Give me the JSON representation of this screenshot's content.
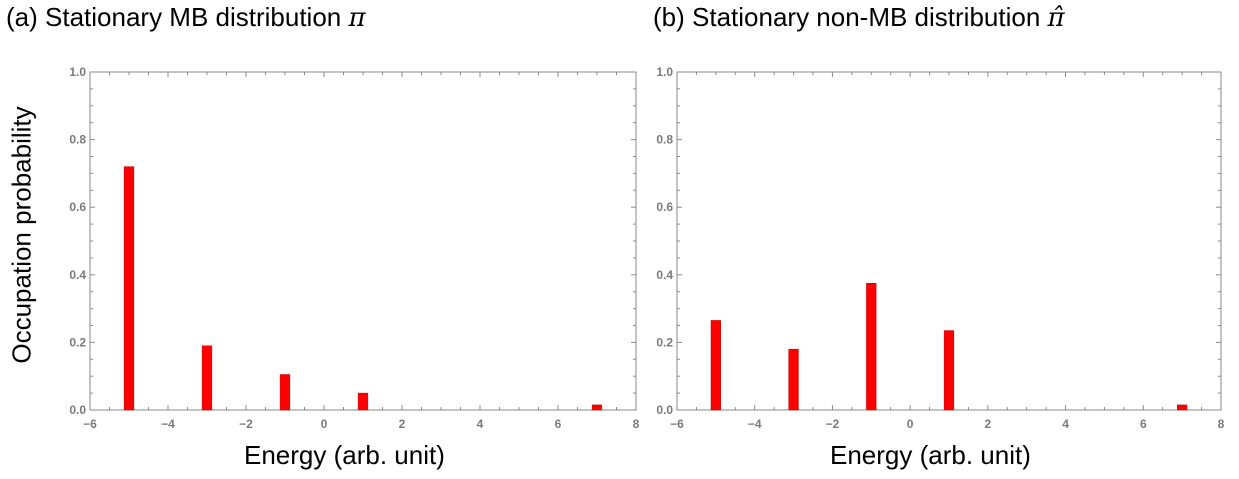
{
  "panels": [
    {
      "title_text": "(a) Stationary MB distribution ",
      "symbol": "π"
    },
    {
      "title_text": "(b) Stationary non-MB distribution ",
      "symbol": "π̂"
    }
  ],
  "ylabel": "Occupation probability",
  "xlabel": "Energy (arb. unit)",
  "chart_data": [
    {
      "type": "bar",
      "title": "(a) Stationary MB distribution π",
      "xlabel": "Energy (arb. unit)",
      "ylabel": "Occupation probability",
      "xlim": [
        -6,
        8
      ],
      "ylim": [
        0,
        1.0
      ],
      "x": [
        -5,
        -3,
        -1,
        1,
        7
      ],
      "values": [
        0.72,
        0.19,
        0.105,
        0.05,
        0.015
      ],
      "xticks": [
        -6,
        -4,
        -2,
        0,
        2,
        4,
        6,
        8
      ],
      "xtick_labels": [
        "−6",
        "−4",
        "−2",
        "0",
        "2",
        "4",
        "6",
        "8"
      ],
      "yticks": [
        0.0,
        0.2,
        0.4,
        0.6,
        0.8,
        1.0
      ],
      "ytick_labels": [
        "0.0",
        "0.2",
        "0.4",
        "0.6",
        "0.8",
        "1.0"
      ],
      "bar_color": "#ff0000",
      "grid": false
    },
    {
      "type": "bar",
      "title": "(b) Stationary non-MB distribution π̂",
      "xlabel": "Energy (arb. unit)",
      "xlim": [
        -6,
        8
      ],
      "ylim": [
        0,
        1.0
      ],
      "x": [
        -5,
        -3,
        -1,
        1,
        7
      ],
      "values": [
        0.265,
        0.18,
        0.375,
        0.235,
        0.015
      ],
      "xticks": [
        -6,
        -4,
        -2,
        0,
        2,
        4,
        6,
        8
      ],
      "xtick_labels": [
        "−6",
        "−4",
        "−2",
        "0",
        "2",
        "4",
        "6",
        "8"
      ],
      "yticks": [
        0.0,
        0.2,
        0.4,
        0.6,
        0.8,
        1.0
      ],
      "ytick_labels": [
        "0.0",
        "0.2",
        "0.4",
        "0.6",
        "0.8",
        "1.0"
      ],
      "bar_color": "#ff0000",
      "grid": false
    }
  ]
}
